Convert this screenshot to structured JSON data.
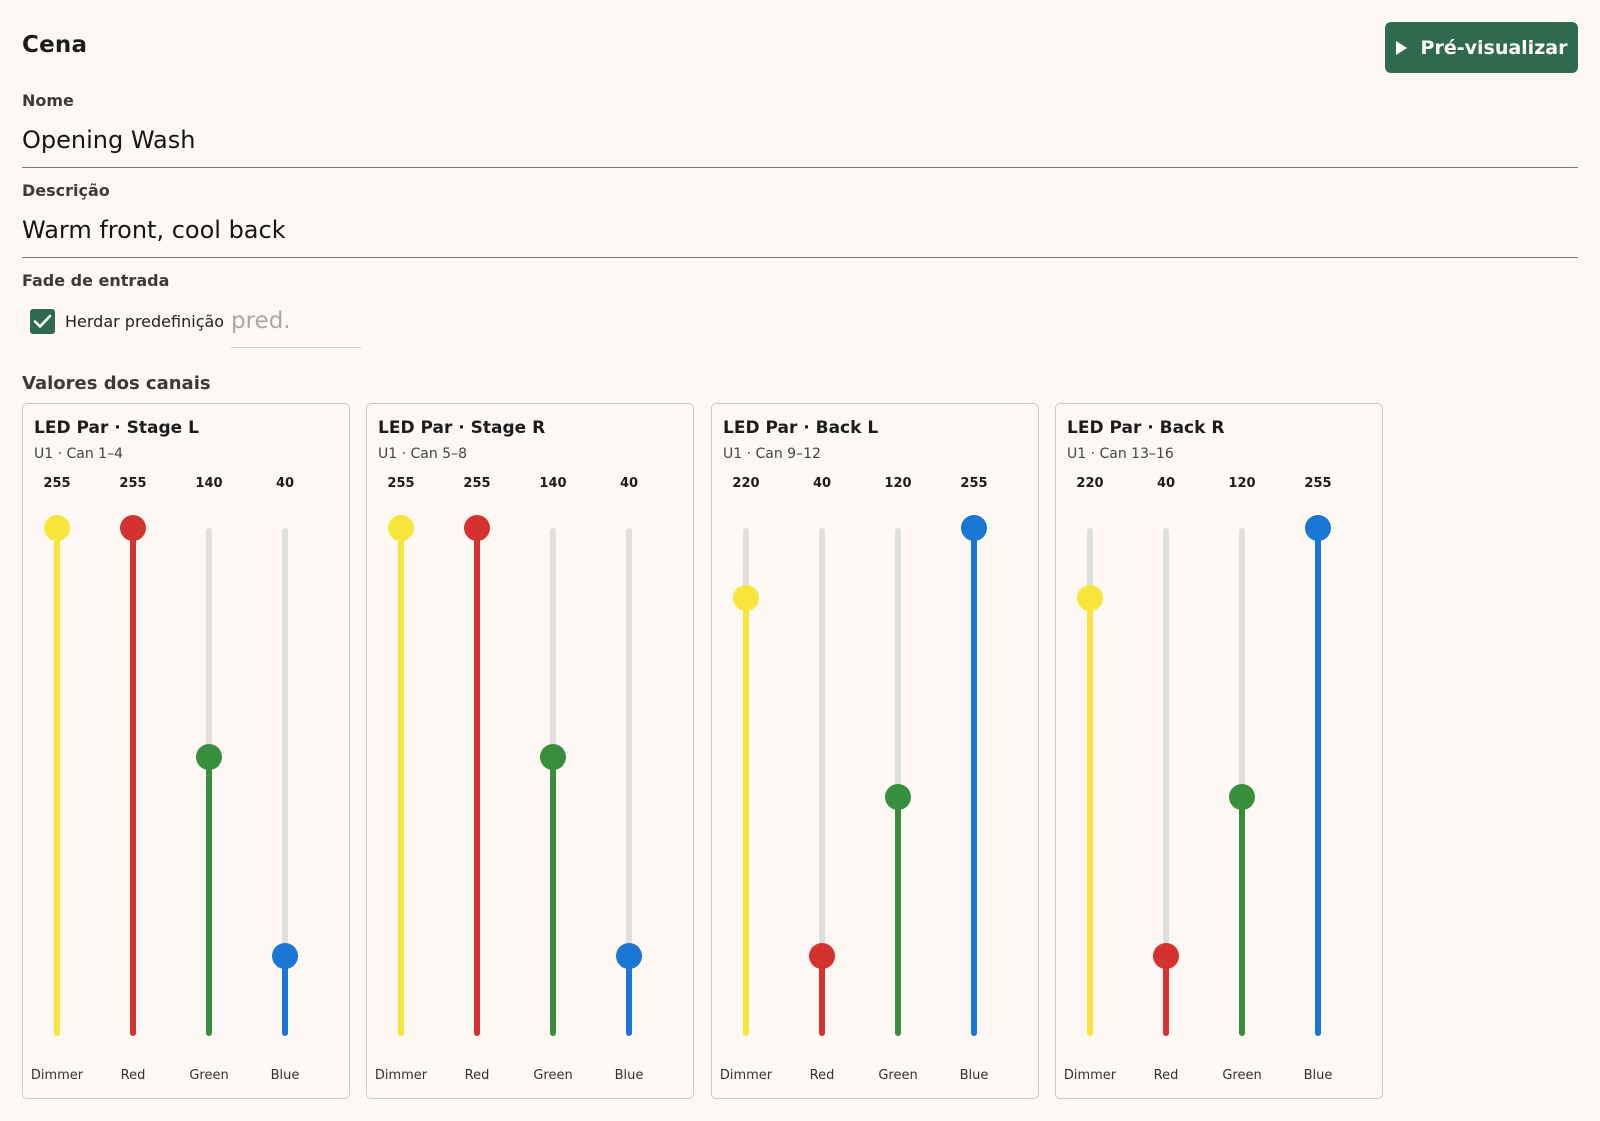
{
  "header": {
    "title": "Cena",
    "preview_label": "Pré-visualizar"
  },
  "form": {
    "name_label": "Nome",
    "name_value": "Opening Wash",
    "description_label": "Descrição",
    "description_value": "Warm front, cool back",
    "fade_label": "Fade de entrada",
    "inherit_label": "Herdar predefinição",
    "inherit_checked": true,
    "fade_placeholder": "pred."
  },
  "channels_section_label": "Valores dos canais",
  "fixtures": [
    {
      "title": "LED Par · Stage L",
      "subtitle": "U1 · Can 1–4",
      "channels": [
        {
          "label": "Dimmer",
          "value": 255,
          "color": "#f8e53b"
        },
        {
          "label": "Red",
          "value": 255,
          "color": "#d63131"
        },
        {
          "label": "Green",
          "value": 140,
          "color": "#388e3c"
        },
        {
          "label": "Blue",
          "value": 40,
          "color": "#1976d2"
        }
      ]
    },
    {
      "title": "LED Par · Stage R",
      "subtitle": "U1 · Can 5–8",
      "channels": [
        {
          "label": "Dimmer",
          "value": 255,
          "color": "#f8e53b"
        },
        {
          "label": "Red",
          "value": 255,
          "color": "#d63131"
        },
        {
          "label": "Green",
          "value": 140,
          "color": "#388e3c"
        },
        {
          "label": "Blue",
          "value": 40,
          "color": "#1976d2"
        }
      ]
    },
    {
      "title": "LED Par · Back L",
      "subtitle": "U1 · Can 9–12",
      "channels": [
        {
          "label": "Dimmer",
          "value": 220,
          "color": "#f8e53b"
        },
        {
          "label": "Red",
          "value": 40,
          "color": "#d63131"
        },
        {
          "label": "Green",
          "value": 120,
          "color": "#388e3c"
        },
        {
          "label": "Blue",
          "value": 255,
          "color": "#1976d2"
        }
      ]
    },
    {
      "title": "LED Par · Back R",
      "subtitle": "U1 · Can 13–16",
      "channels": [
        {
          "label": "Dimmer",
          "value": 220,
          "color": "#f8e53b"
        },
        {
          "label": "Red",
          "value": 40,
          "color": "#d63131"
        },
        {
          "label": "Green",
          "value": 120,
          "color": "#388e3c"
        },
        {
          "label": "Blue",
          "value": 255,
          "color": "#1976d2"
        }
      ]
    }
  ],
  "dmx_max": 255,
  "colors": {
    "accent": "#2f6a4f",
    "background": "#fdf8f3",
    "track": "#dde0dc"
  }
}
